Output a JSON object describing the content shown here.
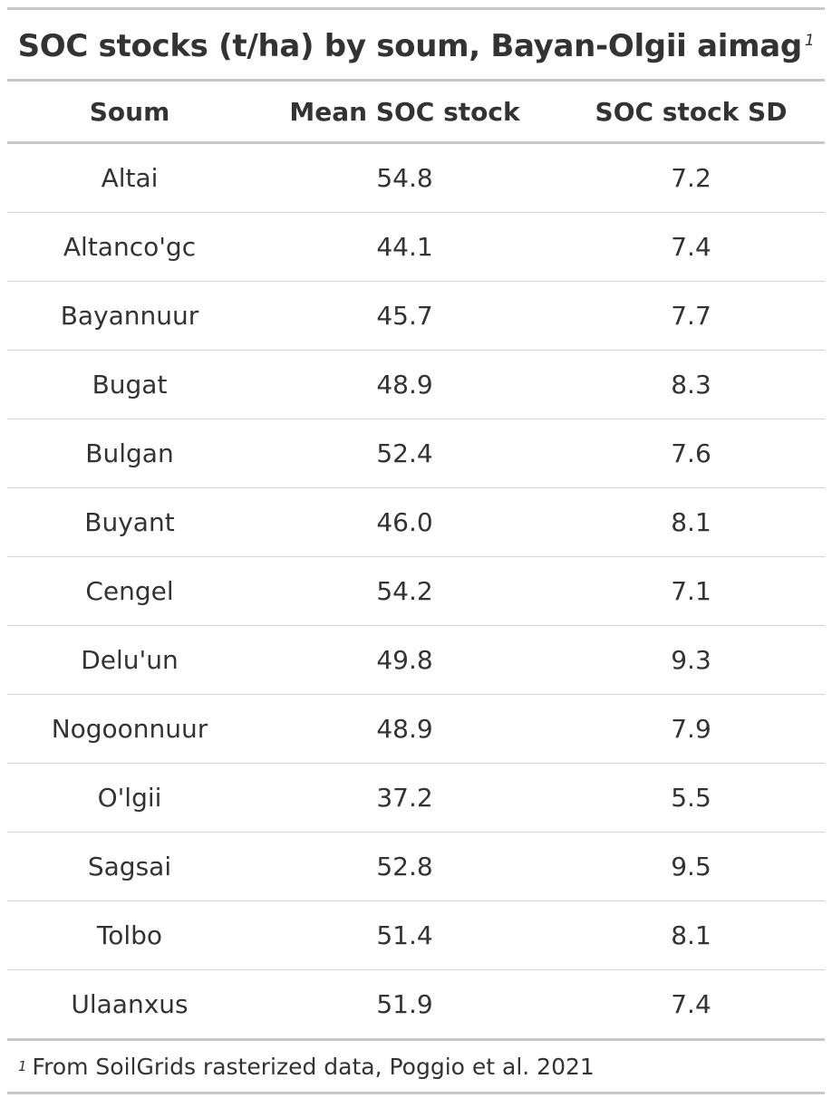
{
  "title": "SOC stocks (t/ha) by soum, Bayan-Olgii aimag",
  "title_footnote_mark": "1",
  "columns": [
    "Soum",
    "Mean SOC stock",
    "SOC stock SD"
  ],
  "rows": [
    {
      "soum": "Altai",
      "mean": "54.8",
      "sd": "7.2"
    },
    {
      "soum": "Altanco'gc",
      "mean": "44.1",
      "sd": "7.4"
    },
    {
      "soum": "Bayannuur",
      "mean": "45.7",
      "sd": "7.7"
    },
    {
      "soum": "Bugat",
      "mean": "48.9",
      "sd": "8.3"
    },
    {
      "soum": "Bulgan",
      "mean": "52.4",
      "sd": "7.6"
    },
    {
      "soum": "Buyant",
      "mean": "46.0",
      "sd": "8.1"
    },
    {
      "soum": "Cengel",
      "mean": "54.2",
      "sd": "7.1"
    },
    {
      "soum": "Delu'un",
      "mean": "49.8",
      "sd": "9.3"
    },
    {
      "soum": "Nogoonnuur",
      "mean": "48.9",
      "sd": "7.9"
    },
    {
      "soum": "O'lgii",
      "mean": "37.2",
      "sd": "5.5"
    },
    {
      "soum": "Sagsai",
      "mean": "52.8",
      "sd": "9.5"
    },
    {
      "soum": "Tolbo",
      "mean": "51.4",
      "sd": "8.1"
    },
    {
      "soum": "Ulaanxus",
      "mean": "51.9",
      "sd": "7.4"
    }
  ],
  "footnote": {
    "mark": "1",
    "text": "From SoilGrids rasterized data, Poggio et al. 2021"
  }
}
